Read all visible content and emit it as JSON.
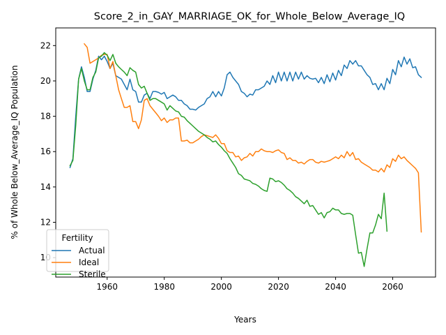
{
  "chart_data": {
    "type": "line",
    "title": "Score_2_in_GAY_MARRIAGE_OK_for_Whole_Below_Average_IQ",
    "xlabel": "Years",
    "ylabel": "% of Whole Below_Average_IQ Population",
    "xlim": [
      1942,
      2075
    ],
    "ylim": [
      8.9,
      23.0
    ],
    "xticks": [
      1960,
      1980,
      2000,
      2020,
      2040,
      2060
    ],
    "yticks": [
      10,
      12,
      14,
      16,
      18,
      20,
      22
    ],
    "legend": {
      "title": "Fertility",
      "placement": "lower-left"
    },
    "series": [
      {
        "name": "Actual",
        "color": "#1f77b4",
        "x": [
          1947,
          1948,
          1949,
          1950,
          1951,
          1952,
          1953,
          1954,
          1955,
          1956,
          1957,
          1958,
          1959,
          1960,
          1961,
          1962,
          1963,
          1964,
          1965,
          1966,
          1967,
          1968,
          1969,
          1970,
          1971,
          1972,
          1973,
          1974,
          1975,
          1976,
          1977,
          1978,
          1979,
          1980,
          1981,
          1982,
          1983,
          1984,
          1985,
          1986,
          1987,
          1988,
          1989,
          1990,
          1991,
          1992,
          1993,
          1994,
          1995,
          1996,
          1997,
          1998,
          1999,
          2000,
          2001,
          2002,
          2003,
          2004,
          2005,
          2006,
          2007,
          2008,
          2009,
          2010,
          2011,
          2012,
          2013,
          2014,
          2015,
          2016,
          2017,
          2018,
          2019,
          2020,
          2021,
          2022,
          2023,
          2024,
          2025,
          2026,
          2027,
          2028,
          2029,
          2030,
          2031,
          2032,
          2033,
          2034,
          2035,
          2036,
          2037,
          2038,
          2039,
          2040,
          2041,
          2042,
          2043,
          2044,
          2045,
          2046,
          2047,
          2048,
          2049,
          2050,
          2051,
          2052,
          2053,
          2054,
          2055,
          2056,
          2057,
          2058,
          2059,
          2060,
          2061,
          2062,
          2063,
          2064,
          2065,
          2066,
          2067,
          2068,
          2069,
          2070
        ],
        "values": [
          15.1,
          15.6,
          18.0,
          20.1,
          20.8,
          20.2,
          19.4,
          19.4,
          20.1,
          20.6,
          21.4,
          21.2,
          21.4,
          21.1,
          20.7,
          21.0,
          20.3,
          20.2,
          20.1,
          19.8,
          19.5,
          20.1,
          19.5,
          19.4,
          18.8,
          18.8,
          19.2,
          19.3,
          19.0,
          19.4,
          19.4,
          19.35,
          19.25,
          19.35,
          19.0,
          19.1,
          19.2,
          19.1,
          18.9,
          18.9,
          18.7,
          18.6,
          18.4,
          18.4,
          18.35,
          18.5,
          18.6,
          18.7,
          19.0,
          19.1,
          19.4,
          19.1,
          19.4,
          19.15,
          19.6,
          20.35,
          20.5,
          20.2,
          20.0,
          19.8,
          19.4,
          19.3,
          19.1,
          19.25,
          19.2,
          19.5,
          19.5,
          19.6,
          19.7,
          20.0,
          19.8,
          20.3,
          19.9,
          20.5,
          20.0,
          20.5,
          20.0,
          20.5,
          20.0,
          20.5,
          20.1,
          20.5,
          20.1,
          20.3,
          20.15,
          20.1,
          20.15,
          19.9,
          20.2,
          19.85,
          20.35,
          19.95,
          20.45,
          20.05,
          20.6,
          20.3,
          20.9,
          20.7,
          21.15,
          20.95,
          21.15,
          20.85,
          20.85,
          20.6,
          20.35,
          20.2,
          19.8,
          19.85,
          19.5,
          19.85,
          19.5,
          20.15,
          19.85,
          20.65,
          20.35,
          21.15,
          20.8,
          21.35,
          20.95,
          21.25,
          20.75,
          20.8,
          20.35,
          20.2
        ]
      },
      {
        "name": "Ideal",
        "color": "#ff7f0e",
        "x": [
          1952,
          1953,
          1954,
          1955,
          1956,
          1957,
          1958,
          1959,
          1960,
          1961,
          1962,
          1963,
          1964,
          1965,
          1966,
          1967,
          1968,
          1969,
          1970,
          1971,
          1972,
          1973,
          1974,
          1975,
          1976,
          1977,
          1978,
          1979,
          1980,
          1981,
          1982,
          1983,
          1984,
          1985,
          1986,
          1987,
          1988,
          1989,
          1990,
          1991,
          1992,
          1993,
          1994,
          1995,
          1996,
          1997,
          1998,
          1999,
          2000,
          2001,
          2002,
          2003,
          2004,
          2005,
          2006,
          2007,
          2008,
          2009,
          2010,
          2011,
          2012,
          2013,
          2014,
          2015,
          2016,
          2017,
          2018,
          2019,
          2020,
          2021,
          2022,
          2023,
          2024,
          2025,
          2026,
          2027,
          2028,
          2029,
          2030,
          2031,
          2032,
          2033,
          2034,
          2035,
          2036,
          2037,
          2038,
          2039,
          2040,
          2041,
          2042,
          2043,
          2044,
          2045,
          2046,
          2047,
          2048,
          2049,
          2050,
          2051,
          2052,
          2053,
          2054,
          2055,
          2056,
          2057,
          2058,
          2059,
          2060,
          2061,
          2062,
          2063,
          2064,
          2065,
          2066,
          2067,
          2068,
          2069,
          2070
        ],
        "values": [
          22.1,
          21.9,
          21.0,
          21.1,
          21.2,
          21.3,
          21.45,
          21.5,
          21.5,
          20.7,
          21.1,
          20.3,
          19.5,
          19.0,
          18.5,
          18.5,
          18.6,
          17.7,
          17.7,
          17.3,
          17.8,
          18.9,
          19.0,
          18.6,
          18.4,
          18.2,
          18.0,
          17.75,
          17.9,
          17.65,
          17.8,
          17.8,
          17.9,
          17.9,
          16.6,
          16.6,
          16.65,
          16.5,
          16.5,
          16.6,
          16.7,
          16.85,
          16.95,
          16.9,
          16.85,
          16.8,
          16.95,
          16.75,
          16.45,
          16.45,
          16.05,
          15.95,
          15.95,
          15.7,
          15.75,
          15.5,
          15.65,
          15.7,
          15.9,
          15.75,
          16.0,
          16.0,
          16.15,
          16.05,
          16.0,
          16.0,
          15.95,
          16.05,
          16.1,
          15.95,
          15.9,
          15.55,
          15.65,
          15.5,
          15.5,
          15.35,
          15.4,
          15.3,
          15.45,
          15.55,
          15.55,
          15.4,
          15.35,
          15.45,
          15.4,
          15.45,
          15.5,
          15.6,
          15.7,
          15.6,
          15.8,
          15.65,
          16.0,
          15.75,
          15.95,
          15.55,
          15.6,
          15.4,
          15.3,
          15.2,
          15.1,
          14.95,
          14.95,
          14.85,
          15.05,
          14.85,
          15.25,
          15.1,
          15.6,
          15.45,
          15.8,
          15.6,
          15.7,
          15.5,
          15.35,
          15.2,
          15.05,
          14.8,
          11.45
        ]
      },
      {
        "name": "Sterile",
        "color": "#2ca02c",
        "x": [
          1947,
          1948,
          1949,
          1950,
          1951,
          1952,
          1953,
          1954,
          1955,
          1956,
          1957,
          1958,
          1959,
          1960,
          1961,
          1962,
          1963,
          1964,
          1965,
          1966,
          1967,
          1968,
          1969,
          1970,
          1971,
          1972,
          1973,
          1974,
          1975,
          1976,
          1977,
          1978,
          1979,
          1980,
          1981,
          1982,
          1983,
          1984,
          1985,
          1986,
          1987,
          1988,
          1989,
          1990,
          1991,
          1992,
          1993,
          1994,
          1995,
          1996,
          1997,
          1998,
          1999,
          2000,
          2001,
          2002,
          2003,
          2004,
          2005,
          2006,
          2007,
          2008,
          2009,
          2010,
          2011,
          2012,
          2013,
          2014,
          2015,
          2016,
          2017,
          2018,
          2019,
          2020,
          2021,
          2022,
          2023,
          2024,
          2025,
          2026,
          2027,
          2028,
          2029,
          2030,
          2031,
          2032,
          2033,
          2034,
          2035,
          2036,
          2037,
          2038,
          2039,
          2040,
          2041,
          2042,
          2043,
          2044,
          2045,
          2046,
          2047,
          2048,
          2049,
          2050,
          2051,
          2052,
          2053,
          2054,
          2055,
          2056,
          2057,
          2058
        ],
        "values": [
          15.2,
          15.5,
          17.5,
          20.1,
          20.7,
          20.0,
          19.5,
          19.5,
          20.2,
          20.5,
          21.3,
          21.4,
          21.6,
          21.45,
          21.15,
          21.5,
          21.0,
          20.8,
          20.65,
          20.5,
          20.3,
          20.75,
          20.6,
          20.5,
          19.8,
          19.6,
          19.7,
          19.3,
          18.9,
          19.0,
          19.0,
          18.9,
          18.8,
          18.7,
          18.35,
          18.6,
          18.45,
          18.3,
          18.25,
          18.0,
          17.95,
          17.75,
          17.6,
          17.45,
          17.3,
          17.15,
          17.05,
          16.95,
          16.8,
          16.7,
          16.55,
          16.6,
          16.4,
          16.25,
          16.05,
          15.9,
          15.6,
          15.35,
          15.1,
          14.75,
          14.65,
          14.45,
          14.4,
          14.35,
          14.2,
          14.15,
          14.05,
          13.9,
          13.8,
          13.75,
          14.5,
          14.45,
          14.3,
          14.35,
          14.25,
          14.1,
          13.9,
          13.8,
          13.65,
          13.45,
          13.35,
          13.2,
          13.05,
          13.25,
          12.9,
          12.95,
          12.7,
          12.45,
          12.55,
          12.25,
          12.55,
          12.6,
          12.8,
          12.7,
          12.7,
          12.5,
          12.45,
          12.5,
          12.5,
          12.4,
          11.3,
          10.25,
          10.3,
          9.5,
          10.5,
          11.4,
          11.4,
          11.85,
          12.45,
          12.2,
          13.65,
          11.5
        ]
      }
    ]
  }
}
